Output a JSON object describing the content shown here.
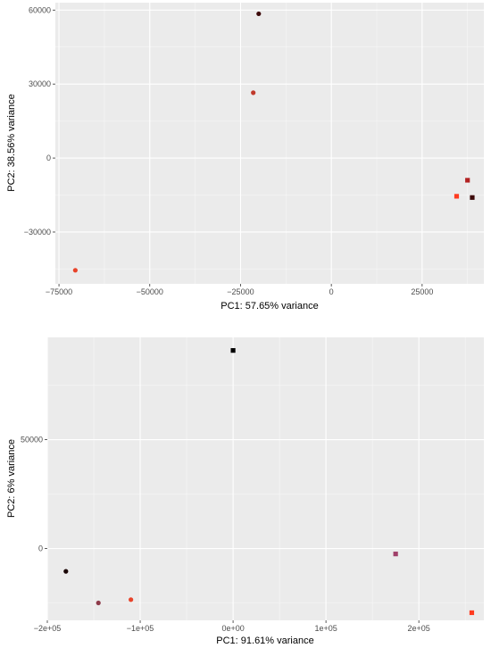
{
  "chart_data": [
    {
      "type": "scatter",
      "xlabel": "PC1: 57.65% variance",
      "ylabel": "PC2: 38.56% variance",
      "xlim": [
        -76000,
        42000
      ],
      "ylim": [
        -51000,
        63000
      ],
      "x_ticks": [
        -75000,
        -50000,
        -25000,
        0,
        25000
      ],
      "x_tick_labels": [
        "−75000",
        "−50000",
        "−25000",
        "0",
        "25000"
      ],
      "y_ticks": [
        -30000,
        0,
        30000,
        60000
      ],
      "y_tick_labels": [
        "−30000",
        "0",
        "30000",
        "60000"
      ],
      "grid": true,
      "points": [
        {
          "x": -20000,
          "y": 58500,
          "shape": "circle",
          "color": "#3d0a0a"
        },
        {
          "x": -21500,
          "y": 26500,
          "shape": "circle",
          "color": "#c0392b"
        },
        {
          "x": -70500,
          "y": -45500,
          "shape": "circle",
          "color": "#e8432a"
        },
        {
          "x": 37500,
          "y": -9000,
          "shape": "square",
          "color": "#b22222"
        },
        {
          "x": 34500,
          "y": -15500,
          "shape": "square",
          "color": "#ff3b1f"
        },
        {
          "x": 38800,
          "y": -16000,
          "shape": "square",
          "color": "#3d0a0a"
        }
      ]
    },
    {
      "type": "scatter",
      "xlabel": "PC1: 91.61% variance",
      "ylabel": "PC2: 6% variance",
      "xlim": [
        -200000,
        270000
      ],
      "ylim": [
        -33000,
        97000
      ],
      "x_ticks": [
        -200000,
        -100000,
        0,
        100000,
        200000
      ],
      "x_tick_labels": [
        "−2e+05",
        "−1e+05",
        "0e+00",
        "1e+05",
        "2e+05"
      ],
      "y_ticks": [
        0,
        50000
      ],
      "y_tick_labels": [
        "0",
        "50000"
      ],
      "grid": true,
      "points": [
        {
          "x": 0,
          "y": 91000,
          "shape": "square",
          "color": "#000000"
        },
        {
          "x": -180000,
          "y": -10500,
          "shape": "circle",
          "color": "#1a0505"
        },
        {
          "x": -145000,
          "y": -25000,
          "shape": "circle",
          "color": "#8e3b4a"
        },
        {
          "x": -110000,
          "y": -23500,
          "shape": "circle",
          "color": "#e8432a"
        },
        {
          "x": 175000,
          "y": -2500,
          "shape": "square",
          "color": "#a0406a"
        },
        {
          "x": 257000,
          "y": -29500,
          "shape": "square",
          "color": "#ff3b1f"
        }
      ]
    }
  ]
}
